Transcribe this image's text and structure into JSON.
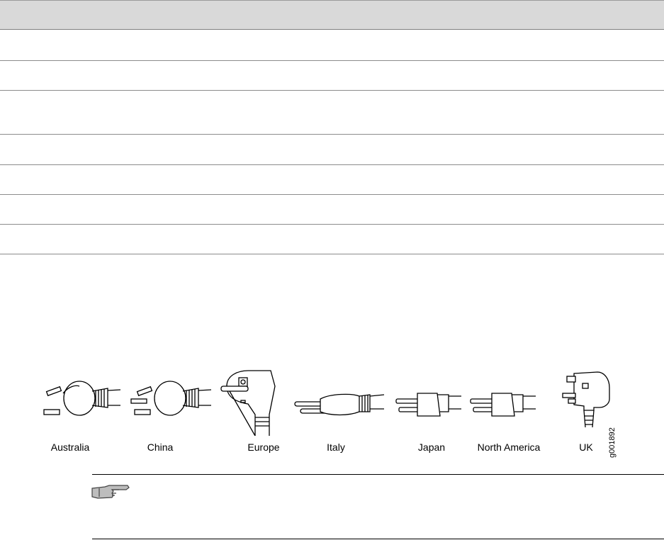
{
  "table": {
    "header_color": "#d9d9d9",
    "row_count": 7
  },
  "figure": {
    "id": "g001892",
    "plugs": [
      {
        "label": "Australia",
        "icon": "australia-plug-icon"
      },
      {
        "label": "China",
        "icon": "china-plug-icon"
      },
      {
        "label": "Europe",
        "icon": "europe-plug-icon"
      },
      {
        "label": "Italy",
        "icon": "italy-plug-icon"
      },
      {
        "label": "Japan",
        "icon": "japan-plug-icon"
      },
      {
        "label": "North America",
        "icon": "north-america-plug-icon"
      },
      {
        "label": "UK",
        "icon": "uk-plug-icon"
      }
    ]
  },
  "note": {
    "icon": "pointing-hand-icon"
  }
}
